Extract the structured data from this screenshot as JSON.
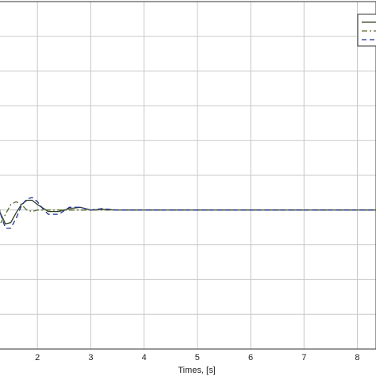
{
  "chart_data": {
    "type": "line",
    "title": "",
    "xlabel": "Times, [s]",
    "ylabel": "",
    "xlim": [
      1,
      8.35
    ],
    "ylim": [
      -1.5,
      1.0
    ],
    "x_ticks": [
      2,
      3,
      4,
      5,
      6,
      7,
      8
    ],
    "x_tick_labels": [
      "2",
      "3",
      "4",
      "5",
      "6",
      "7",
      "8"
    ],
    "y_grid_values": [
      -1.25,
      -1.0,
      -0.75,
      -0.5,
      -0.25,
      0.0,
      0.25,
      0.5,
      0.75
    ],
    "grid": true,
    "legend": {
      "placement": "top-right",
      "entries": [
        {
          "style": "solid",
          "color": "#2e3d1f"
        },
        {
          "style": "dashdot",
          "color": "#556b2f"
        },
        {
          "style": "dashed",
          "color": "#1f2f8f"
        }
      ]
    },
    "series": [
      {
        "style": "solid",
        "color": "#2e3d1f",
        "x": [
          1.0,
          1.1,
          1.2,
          1.3,
          1.4,
          1.5,
          1.6,
          1.7,
          1.8,
          1.9,
          2.0,
          2.2,
          2.4,
          2.6,
          2.8,
          3.0,
          3.2,
          3.5,
          4.0,
          5.0,
          6.0,
          7.0,
          8.35
        ],
        "y": [
          -0.35,
          -0.28,
          -0.37,
          -0.52,
          -0.6,
          -0.59,
          -0.52,
          -0.46,
          -0.43,
          -0.43,
          -0.46,
          -0.51,
          -0.51,
          -0.49,
          -0.48,
          -0.5,
          -0.495,
          -0.5,
          -0.5,
          -0.5,
          -0.5,
          -0.5,
          -0.5
        ]
      },
      {
        "style": "dashdot",
        "color": "#556b2f",
        "x": [
          1.0,
          1.1,
          1.2,
          1.3,
          1.4,
          1.5,
          1.6,
          1.7,
          1.8,
          1.9,
          2.0,
          2.2,
          2.4,
          2.6,
          3.0,
          4.0,
          5.0,
          6.0,
          7.0,
          8.35
        ],
        "y": [
          -0.3,
          -0.4,
          -0.58,
          -0.6,
          -0.53,
          -0.46,
          -0.44,
          -0.46,
          -0.5,
          -0.51,
          -0.5,
          -0.5,
          -0.5,
          -0.5,
          -0.5,
          -0.5,
          -0.5,
          -0.5,
          -0.5,
          -0.5
        ]
      },
      {
        "style": "dashed",
        "color": "#1f2f8f",
        "x": [
          1.0,
          1.1,
          1.2,
          1.3,
          1.4,
          1.5,
          1.6,
          1.7,
          1.8,
          1.9,
          2.0,
          2.1,
          2.2,
          2.4,
          2.6,
          2.8,
          3.0,
          3.2,
          3.5,
          4.0,
          5.0,
          6.0,
          7.0,
          8.35
        ],
        "y": [
          -0.25,
          -0.17,
          -0.3,
          -0.52,
          -0.63,
          -0.63,
          -0.56,
          -0.47,
          -0.42,
          -0.41,
          -0.44,
          -0.49,
          -0.53,
          -0.53,
          -0.48,
          -0.48,
          -0.5,
          -0.49,
          -0.5,
          -0.5,
          -0.5,
          -0.5,
          -0.5,
          -0.5
        ]
      }
    ]
  }
}
